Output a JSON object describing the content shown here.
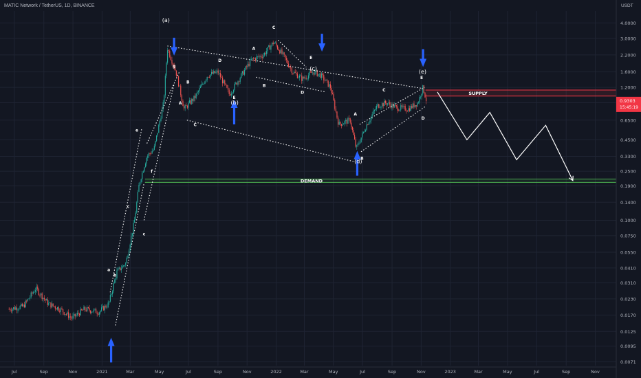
{
  "header": {
    "title": "MATIC Network / TetherUS, 1D, BINANCE",
    "unit": "USDT"
  },
  "colors": {
    "background": "#131722",
    "grid": "#1f2433",
    "axis_text": "#b2b5be",
    "up_candle": "#26a69a",
    "down_candle": "#ef5350",
    "wave_line": "#ffffff",
    "supply": "#f23645",
    "demand": "#4caf50",
    "arrow": "#2962ff",
    "price_tag": "#f23645"
  },
  "chart_data": {
    "type": "candlestick",
    "scale": "log",
    "ylim": [
      0.0066,
      5.0
    ],
    "y_ticks": [
      "4.0000",
      "3.0000",
      "2.2000",
      "1.6000",
      "1.2000",
      "0.9000",
      "0.6500",
      "0.4500",
      "0.3300",
      "0.2500",
      "0.1900",
      "0.1400",
      "0.1000",
      "0.0750",
      "0.0550",
      "0.0410",
      "0.0310",
      "0.0230",
      "0.0170",
      "0.0125",
      "0.0095",
      "0.0071"
    ],
    "x_ticks": [
      "Jul",
      "Sep",
      "Nov",
      "2021",
      "Mar",
      "May",
      "Jul",
      "Sep",
      "Nov",
      "2022",
      "Mar",
      "May",
      "Jul",
      "Sep",
      "Nov",
      "2023",
      "Mar",
      "May",
      "Jul",
      "Sep",
      "Nov"
    ],
    "price_tag": {
      "value": "0.9303",
      "countdown": "15:45:19"
    },
    "zones": [
      {
        "name": "SUPPLY",
        "low": 1.02,
        "high": 1.14
      },
      {
        "name": "DEMAND",
        "low": 0.203,
        "high": 0.216
      }
    ],
    "close_path": [
      [
        "2020-06-20",
        0.019
      ],
      [
        "2020-07-20",
        0.02
      ],
      [
        "2020-08-15",
        0.028
      ],
      [
        "2020-09-10",
        0.021
      ],
      [
        "2020-10-05",
        0.019
      ],
      [
        "2020-10-30",
        0.016
      ],
      [
        "2020-11-25",
        0.019
      ],
      [
        "2020-12-25",
        0.018
      ],
      [
        "2021-01-15",
        0.021
      ],
      [
        "2021-02-01",
        0.038
      ],
      [
        "2021-02-20",
        0.045
      ],
      [
        "2021-03-10",
        0.1
      ],
      [
        "2021-03-20",
        0.2
      ],
      [
        "2021-04-05",
        0.33
      ],
      [
        "2021-04-20",
        0.38
      ],
      [
        "2021-05-10",
        0.9
      ],
      [
        "2021-05-18",
        2.5
      ],
      [
        "2021-06-05",
        1.6
      ],
      [
        "2021-06-22",
        0.8
      ],
      [
        "2021-07-15",
        1.0
      ],
      [
        "2021-08-10",
        1.5
      ],
      [
        "2021-09-01",
        1.6
      ],
      [
        "2021-09-25",
        1.05
      ],
      [
        "2021-10-15",
        1.4
      ],
      [
        "2021-11-10",
        2.0
      ],
      [
        "2021-12-05",
        2.2
      ],
      [
        "2021-12-27",
        2.8
      ],
      [
        "2022-01-15",
        2.2
      ],
      [
        "2022-02-05",
        1.6
      ],
      [
        "2022-02-25",
        1.4
      ],
      [
        "2022-03-20",
        1.6
      ],
      [
        "2022-04-05",
        1.5
      ],
      [
        "2022-04-25",
        1.2
      ],
      [
        "2022-05-12",
        0.6
      ],
      [
        "2022-06-05",
        0.65
      ],
      [
        "2022-06-18",
        0.38
      ],
      [
        "2022-07-10",
        0.6
      ],
      [
        "2022-08-01",
        0.85
      ],
      [
        "2022-08-20",
        0.9
      ],
      [
        "2022-09-10",
        0.82
      ],
      [
        "2022-10-05",
        0.8
      ],
      [
        "2022-10-25",
        0.9
      ],
      [
        "2022-11-05",
        1.2
      ],
      [
        "2022-11-12",
        0.93
      ]
    ],
    "projection": [
      [
        "2022-12-05",
        1.1
      ],
      [
        "2023-02-05",
        0.45
      ],
      [
        "2023-03-25",
        0.75
      ],
      [
        "2023-05-20",
        0.31
      ],
      [
        "2023-07-20",
        0.59
      ],
      [
        "2023-09-15",
        0.21
      ]
    ],
    "wave_lines": [
      [
        [
          "2021-01-18",
          0.026
        ],
        [
          "2021-03-25",
          0.55
        ]
      ],
      [
        [
          "2021-01-29",
          0.014
        ],
        [
          "2021-03-30",
          0.2
        ]
      ],
      [
        [
          "2021-05-18",
          2.6
        ],
        [
          "2022-11-01",
          1.18
        ]
      ],
      [
        [
          "2021-06-28",
          0.65
        ],
        [
          "2022-06-12",
          0.3
        ]
      ],
      [
        [
          "2022-01-05",
          2.9
        ],
        [
          "2022-03-05",
          1.75
        ]
      ],
      [
        [
          "2021-11-20",
          1.45
        ],
        [
          "2022-04-15",
          1.1
        ]
      ],
      [
        [
          "2022-06-25",
          0.6
        ],
        [
          "2022-11-08",
          1.2
        ]
      ],
      [
        [
          "2022-06-28",
          0.36
        ],
        [
          "2022-11-10",
          0.84
        ]
      ],
      [
        [
          "2021-03-30",
          0.1
        ],
        [
          "2021-06-01",
          1.28
        ]
      ],
      [
        [
          "2021-04-05",
          0.42
        ],
        [
          "2021-06-12",
          1.6
        ]
      ]
    ],
    "wave_labels": [
      [
        "2021-05-15",
        4.2,
        "(a)"
      ],
      [
        "2021-10-06",
        0.9,
        "(b)"
      ],
      [
        "2022-03-20",
        1.7,
        "(c)"
      ],
      [
        "2022-06-22",
        0.3,
        "(d)"
      ],
      [
        "2022-11-04",
        1.6,
        "(e)"
      ],
      [
        "2021-01-15",
        0.04,
        "a"
      ],
      [
        "2021-01-28",
        0.036,
        "b"
      ],
      [
        "2021-02-25",
        0.13,
        "c"
      ],
      [
        "2021-03-30",
        0.078,
        "c"
      ],
      [
        "2021-03-15",
        0.54,
        "e"
      ],
      [
        "2021-04-15",
        0.25,
        "f"
      ],
      [
        "2021-06-01",
        1.8,
        "g"
      ],
      [
        "2021-06-14",
        0.9,
        "A"
      ],
      [
        "2021-06-30",
        1.33,
        "B"
      ],
      [
        "2021-07-15",
        0.6,
        "C"
      ],
      [
        "2021-09-05",
        2.0,
        "D"
      ],
      [
        "2021-10-05",
        1.0,
        "E"
      ],
      [
        "2021-11-15",
        2.5,
        "A"
      ],
      [
        "2021-12-07",
        1.25,
        "B"
      ],
      [
        "2021-12-27",
        3.7,
        "C"
      ],
      [
        "2022-02-25",
        1.1,
        "D"
      ],
      [
        "2022-03-15",
        2.1,
        "E"
      ],
      [
        "2022-06-16",
        0.73,
        "A"
      ],
      [
        "2022-06-30",
        0.32,
        "B"
      ],
      [
        "2022-08-15",
        1.15,
        "C"
      ],
      [
        "2022-11-05",
        0.68,
        "D"
      ],
      [
        "2022-11-02",
        1.45,
        "E"
      ]
    ],
    "arrows": [
      [
        "2021-01-20",
        0.007,
        "up"
      ],
      [
        "2021-06-01",
        2.6,
        "down"
      ],
      [
        "2021-10-05",
        0.6,
        "up"
      ],
      [
        "2022-04-07",
        2.8,
        "down"
      ],
      [
        "2022-06-20",
        0.23,
        "up"
      ],
      [
        "2022-11-05",
        2.1,
        "down"
      ]
    ]
  }
}
